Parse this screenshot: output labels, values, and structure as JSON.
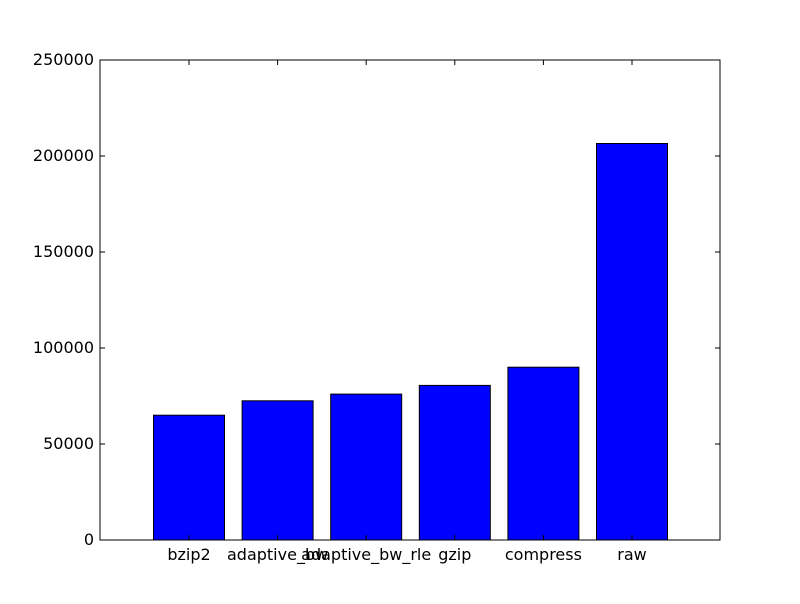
{
  "chart_data": {
    "type": "bar",
    "title": "",
    "xlabel": "",
    "ylabel": "",
    "categories": [
      "bzip2",
      "adaptive_bw",
      "adaptive_bw_rle",
      "gzip",
      "compress",
      "raw"
    ],
    "values": [
      65000,
      72500,
      76000,
      80500,
      90000,
      206500
    ],
    "ylim": [
      0,
      250000
    ],
    "yticks": [
      0,
      50000,
      100000,
      150000,
      200000,
      250000
    ],
    "ytick_labels": [
      "0",
      "50000",
      "100000",
      "150000",
      "200000",
      "250000"
    ],
    "grid": false,
    "legend": "none",
    "colors": {
      "bar_fill": "#0000ff",
      "bar_edge": "#000000",
      "axes": "#000000",
      "background": "#ffffff"
    }
  }
}
